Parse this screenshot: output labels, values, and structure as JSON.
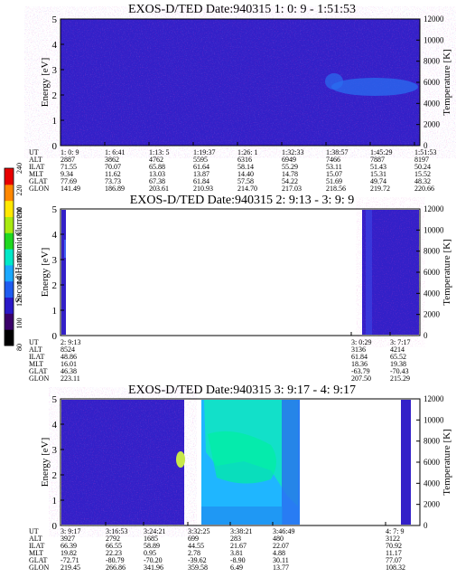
{
  "chart_data": [
    {
      "type": "heatmap",
      "title": "EXOS-D/TED   Date:940315  1: 0: 9 - 1:51:53",
      "ylabel": "Energy [eV]",
      "y2label": "Temperature [K]",
      "yticks": [
        "0",
        "1",
        "2",
        "3",
        "4",
        "5"
      ],
      "y2ticks": [
        "0",
        "2000",
        "4000",
        "6000",
        "8000",
        "10000",
        "12000"
      ],
      "ylim": [
        0,
        5
      ],
      "y2lim": [
        0,
        12000
      ],
      "row_labels": [
        "UT",
        "ALT",
        "ILAT",
        "MLT",
        "GLAT",
        "GLON"
      ],
      "columns": [
        {
          "UT": "1: 0: 9",
          "ALT": "2887",
          "ILAT": "71.55",
          "MLT": "9.34",
          "GLAT": "77.69",
          "GLON": "141.49"
        },
        {
          "UT": "1: 6:41",
          "ALT": "3862",
          "ILAT": "70.07",
          "MLT": "11.62",
          "GLAT": "73.73",
          "GLON": "186.89"
        },
        {
          "UT": "1:13: 5",
          "ALT": "4762",
          "ILAT": "65.88",
          "MLT": "13.03",
          "GLAT": "67.38",
          "GLON": "203.61"
        },
        {
          "UT": "1:19:37",
          "ALT": "5595",
          "ILAT": "61.64",
          "MLT": "13.87",
          "GLAT": "61.84",
          "GLON": "210.93"
        },
        {
          "UT": "1:26: 1",
          "ALT": "6316",
          "ILAT": "58.14",
          "MLT": "14.40",
          "GLAT": "57.58",
          "GLON": "214.70"
        },
        {
          "UT": "1:32:33",
          "ALT": "6949",
          "ILAT": "55.29",
          "MLT": "14.78",
          "GLAT": "54.22",
          "GLON": "217.03"
        },
        {
          "UT": "1:38:57",
          "ALT": "7466",
          "ILAT": "53.11",
          "MLT": "15.07",
          "GLAT": "51.69",
          "GLON": "218.56"
        },
        {
          "UT": "1:45:29",
          "ALT": "7887",
          "ILAT": "51.43",
          "MLT": "15.31",
          "GLAT": "49.74",
          "GLON": "219.72"
        },
        {
          "UT": "1:51:53",
          "ALT": "8197",
          "ILAT": "50.24",
          "MLT": "15.52",
          "GLAT": "48.32",
          "GLON": "220.66"
        }
      ]
    },
    {
      "type": "heatmap",
      "title": "EXOS-D/TED   Date:940315  2: 9:13 - 3: 9: 9",
      "ylabel": "Energy [eV]",
      "y2label": "Temperature [K]",
      "yticks": [
        "0",
        "1",
        "2",
        "3",
        "4",
        "5"
      ],
      "y2ticks": [
        "0",
        "2000",
        "4000",
        "6000",
        "8000",
        "10000",
        "12000"
      ],
      "ylim": [
        0,
        5
      ],
      "y2lim": [
        0,
        12000
      ],
      "row_labels": [
        "UT",
        "ALT",
        "ILAT",
        "MLT",
        "GLAT",
        "GLON"
      ],
      "columns": [
        {
          "UT": "2: 9:13",
          "ALT": "8524",
          "ILAT": "48.86",
          "MLT": "16.01",
          "GLAT": "46.38",
          "GLON": "223.11"
        },
        {
          "UT": "3: 0:29",
          "ALT": "3136",
          "ILAT": "61.84",
          "MLT": "18.36",
          "GLAT": "-63.79",
          "GLON": "207.50"
        },
        {
          "UT": "3: 7:17",
          "ALT": "4214",
          "ILAT": "65.52",
          "MLT": "19.38",
          "GLAT": "-70.43",
          "GLON": "215.29"
        }
      ]
    },
    {
      "type": "heatmap",
      "title": "EXOS-D/TED   Date:940315  3: 9:17 - 4: 9:17",
      "ylabel": "Energy [eV]",
      "y2label": "Temperature [K]",
      "yticks": [
        "0",
        "1",
        "2",
        "3",
        "4",
        "5"
      ],
      "y2ticks": [
        "0",
        "2000",
        "4000",
        "6000",
        "8000",
        "10000",
        "12000"
      ],
      "ylim": [
        0,
        5
      ],
      "y2lim": [
        0,
        12000
      ],
      "row_labels": [
        "UT",
        "ALT",
        "ILAT",
        "MLT",
        "GLAT",
        "GLON"
      ],
      "columns": [
        {
          "UT": "3: 9:17",
          "ALT": "3927",
          "ILAT": "66.39",
          "MLT": "19.82",
          "GLAT": "-72.71",
          "GLON": "219.45"
        },
        {
          "UT": "3:16:53",
          "ALT": "2792",
          "ILAT": "66.55",
          "MLT": "22.23",
          "GLAT": "-80.79",
          "GLON": "266.86"
        },
        {
          "UT": "3:24:21",
          "ALT": "1685",
          "ILAT": "58.89",
          "MLT": "0.95",
          "GLAT": "-70.20",
          "GLON": "341.96"
        },
        {
          "UT": "3:32:25",
          "ALT": "699",
          "ILAT": "44.55",
          "MLT": "2.78",
          "GLAT": "-39.62",
          "GLON": "359.58"
        },
        {
          "UT": "3:38:21",
          "ALT": "283",
          "ILAT": "21.67",
          "MLT": "3.81",
          "GLAT": "-8.90",
          "GLON": "6.49"
        },
        {
          "UT": "3:46:49",
          "ALT": "480",
          "ILAT": "22.07",
          "MLT": "4.88",
          "GLAT": "30.11",
          "GLON": "13.77"
        },
        {
          "UT": "4: 7: 9",
          "ALT": "3122",
          "ILAT": "70.92",
          "MLT": "11.17",
          "GLAT": "77.07",
          "GLON": "108.32"
        }
      ]
    },
    {
      "type": "colorbar",
      "label": "Second Harmonic Current",
      "ticks": [
        "80",
        "100",
        "120",
        "140",
        "160",
        "180",
        "200",
        "220",
        "240"
      ],
      "range": [
        80,
        240
      ],
      "colors": [
        "#000000",
        "#3a006a",
        "#2a18c8",
        "#1f5cf0",
        "#1aa8ff",
        "#00e8c8",
        "#20d820",
        "#a8ea10",
        "#ffe800",
        "#ff8800",
        "#e80000"
      ]
    }
  ]
}
